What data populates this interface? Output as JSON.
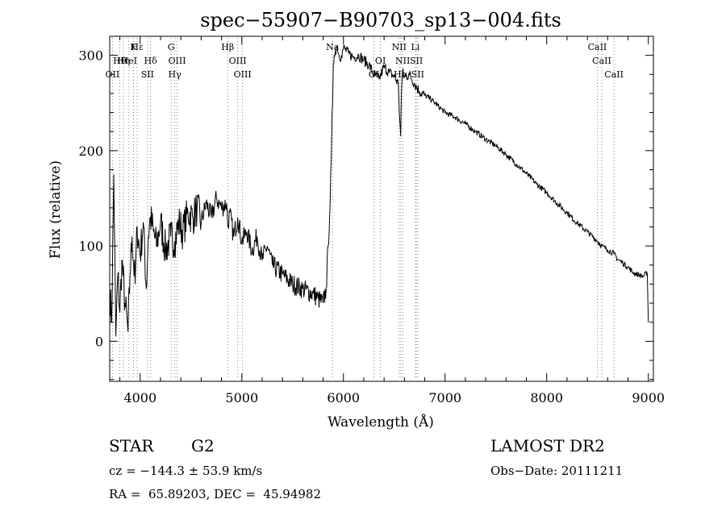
{
  "chart_data": {
    "type": "line",
    "title": "spec−55907−B90703_sp13−004.fits",
    "xlabel": "Wavelength (Å)",
    "ylabel": "Flux (relative)",
    "xlim": [
      3700,
      9050
    ],
    "ylim": [
      -42,
      320
    ],
    "xticks": [
      4000,
      5000,
      6000,
      7000,
      8000,
      9000
    ],
    "yticks": [
      0,
      100,
      200,
      300
    ],
    "grid": false,
    "series": [
      {
        "color": "#000000",
        "x": [
          3700,
          3720,
          3740,
          3760,
          3780,
          3800,
          3820,
          3850,
          3880,
          3900,
          3920,
          3950,
          3970,
          4000,
          4030,
          4060,
          4080,
          4100,
          4130,
          4160,
          4200,
          4250,
          4300,
          4340,
          4380,
          4420,
          4470,
          4520,
          4560,
          4600,
          4650,
          4700,
          4750,
          4800,
          4850,
          4861,
          4880,
          4920,
          4960,
          5000,
          5050,
          5100,
          5150,
          5200,
          5250,
          5300,
          5400,
          5500,
          5600,
          5700,
          5750,
          5800,
          5830,
          5850,
          5870,
          5880,
          5893,
          5900,
          5910,
          5920,
          5940,
          5960,
          5980,
          6000,
          6050,
          6100,
          6150,
          6200,
          6250,
          6300,
          6350,
          6400,
          6450,
          6500,
          6540,
          6555,
          6563,
          6570,
          6580,
          6600,
          6650,
          6700,
          6750,
          6800,
          6850,
          6900,
          6950,
          7000,
          7100,
          7200,
          7300,
          7400,
          7500,
          7600,
          7700,
          7800,
          7900,
          8000,
          8100,
          8200,
          8300,
          8400,
          8500,
          8542,
          8600,
          8662,
          8700,
          8750,
          8800,
          8850,
          8900,
          8950,
          8990,
          9000
        ],
        "y": [
          55,
          20,
          175,
          5,
          70,
          30,
          85,
          40,
          10,
          70,
          110,
          60,
          120,
          90,
          125,
          55,
          110,
          130,
          115,
          100,
          125,
          95,
          110,
          105,
          125,
          115,
          135,
          130,
          140,
          125,
          145,
          130,
          150,
          140,
          145,
          120,
          135,
          110,
          130,
          105,
          115,
          95,
          110,
          85,
          100,
          80,
          70,
          60,
          55,
          50,
          45,
          40,
          55,
          100,
          150,
          190,
          250,
          290,
          300,
          305,
          310,
          298,
          300,
          308,
          302,
          298,
          300,
          295,
          290,
          280,
          275,
          288,
          282,
          278,
          270,
          230,
          215,
          260,
          282,
          278,
          280,
          270,
          262,
          258,
          255,
          250,
          245,
          240,
          235,
          228,
          220,
          212,
          205,
          196,
          186,
          176,
          165,
          156,
          145,
          135,
          124,
          115,
          105,
          100,
          96,
          92,
          86,
          82,
          78,
          72,
          70,
          68,
          72,
          20
        ]
      }
    ],
    "lines": [
      {
        "name": "Hε",
        "x": 3970,
        "color": "#808080"
      },
      {
        "name": "Hθ",
        "x": 3798,
        "color": "#808080"
      },
      {
        "name": "OII",
        "x": 3727,
        "color": "#808080"
      },
      {
        "name": "K",
        "x": 3934,
        "color": "#808080"
      },
      {
        "name": "HeI",
        "x": 3889,
        "color": "#808080"
      },
      {
        "name": "Hη",
        "x": 3835,
        "color": "#808080"
      },
      {
        "name": "Hδ",
        "x": 4102,
        "color": "#808080"
      },
      {
        "name": "SII",
        "x": 4072,
        "color": "#808080"
      },
      {
        "name": "G",
        "x": 4305,
        "color": "#808080"
      },
      {
        "name": "OIII",
        "x": 4363,
        "color": "#808080"
      },
      {
        "name": "Hγ",
        "x": 4340,
        "color": "#808080"
      },
      {
        "name": "Hβ",
        "x": 4861,
        "color": "#808080"
      },
      {
        "name": "OIII",
        "x": 4959,
        "color": "#808080"
      },
      {
        "name": "OIII",
        "x": 5007,
        "color": "#808080"
      },
      {
        "name": "Na",
        "x": 5893,
        "color": "#808080"
      },
      {
        "name": "OI",
        "x": 6300,
        "color": "#808080"
      },
      {
        "name": "OI",
        "x": 6364,
        "color": "#808080"
      },
      {
        "name": "NII",
        "x": 6548,
        "color": "#808080"
      },
      {
        "name": "NII",
        "x": 6583,
        "color": "#808080"
      },
      {
        "name": "Hα",
        "x": 6563,
        "color": "#d08080"
      },
      {
        "name": "Li",
        "x": 6708,
        "color": "#808080"
      },
      {
        "name": "SII",
        "x": 6717,
        "color": "#d08080"
      },
      {
        "name": "SII",
        "x": 6731,
        "color": "#808080"
      },
      {
        "name": "CaII",
        "x": 8498,
        "color": "#808080"
      },
      {
        "name": "CaII",
        "x": 8542,
        "color": "#808080"
      },
      {
        "name": "CaII",
        "x": 8662,
        "color": "#808080"
      }
    ]
  },
  "info": {
    "obj_class": "STAR",
    "subclass": "G2",
    "survey": "LAMOST DR2",
    "cz": "cz = −144.3 ± 53.9 km/s",
    "obs_date": "Obs−Date: 20111211",
    "radec": "RA =  65.89203, DEC =  45.94982"
  }
}
